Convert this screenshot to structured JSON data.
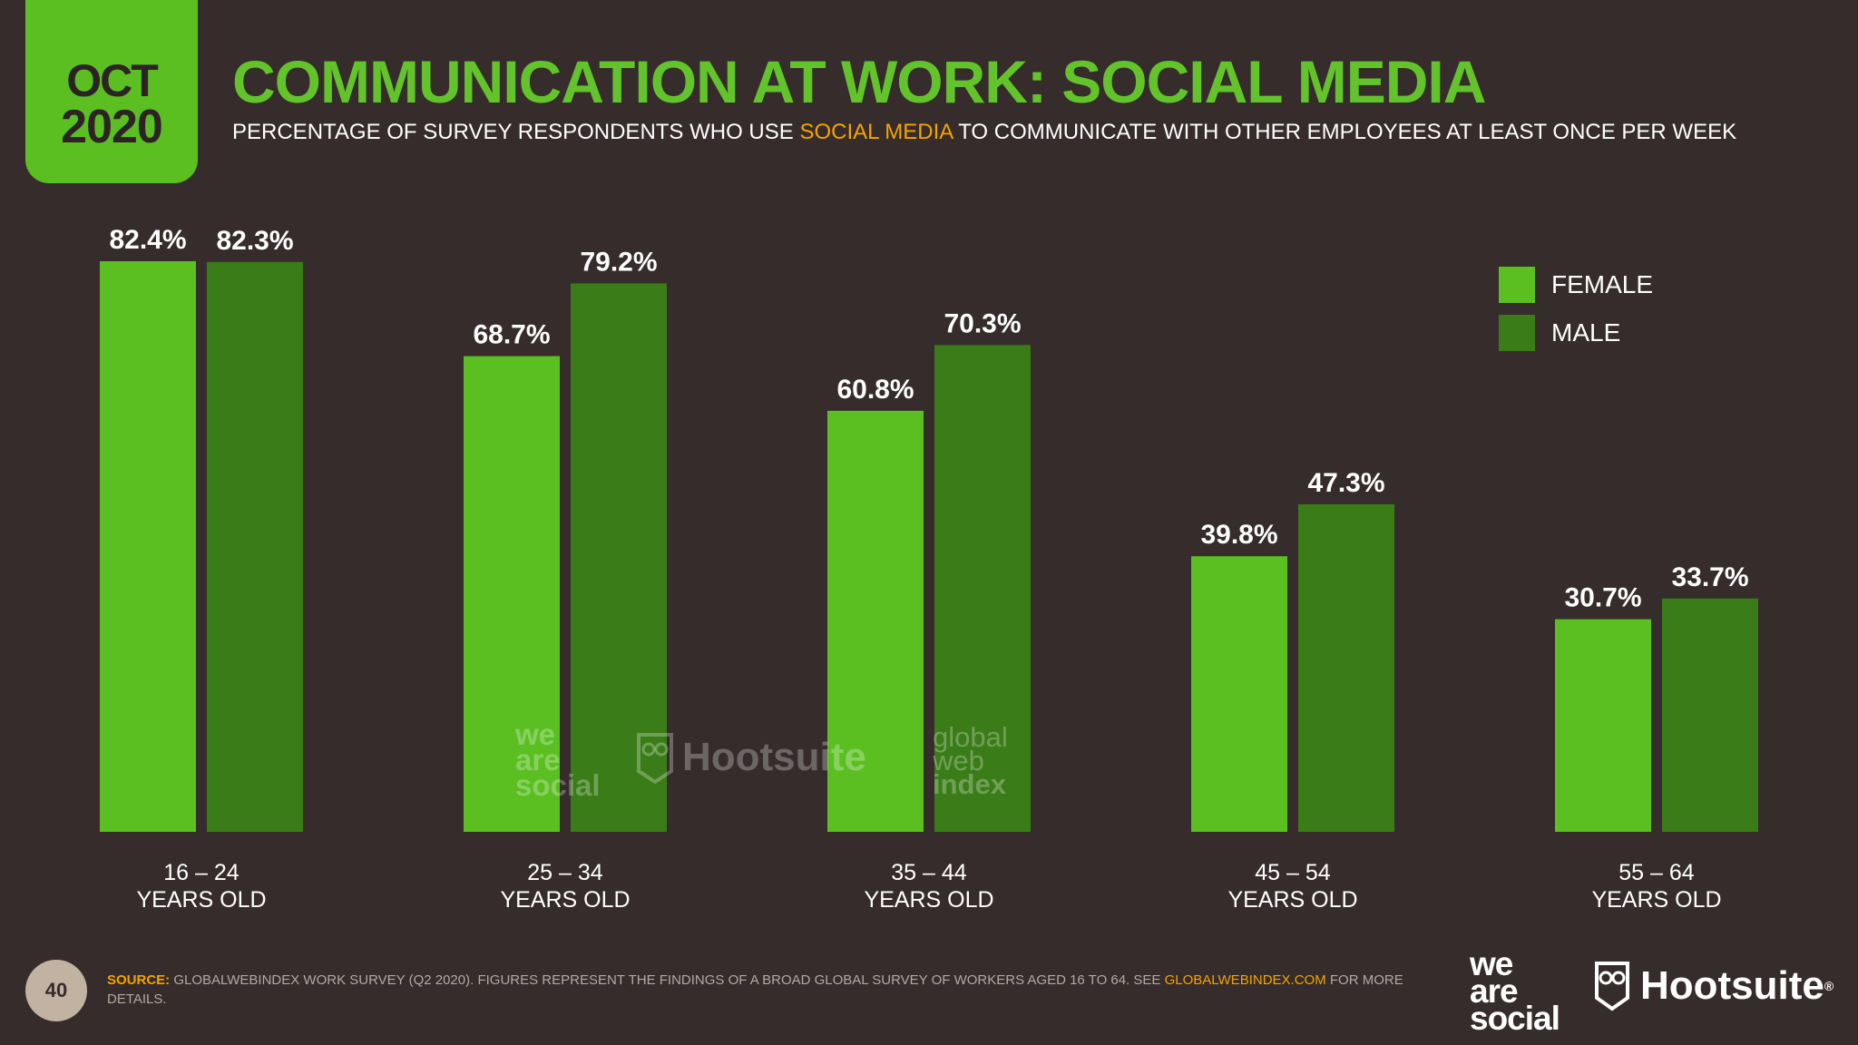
{
  "header": {
    "month": "OCT",
    "year": "2020",
    "title": "COMMUNICATION AT WORK: SOCIAL MEDIA",
    "subtitle_before": "PERCENTAGE OF SURVEY RESPONDENTS WHO USE ",
    "subtitle_highlight": "SOCIAL MEDIA",
    "subtitle_after": " TO COMMUNICATE WITH OTHER EMPLOYEES AT LEAST ONCE PER WEEK"
  },
  "colors": {
    "background": "#352c2b",
    "female": "#5bbf22",
    "male": "#3a7c17",
    "title": "#62c42a",
    "highlight": "#f6a300"
  },
  "chart_data": {
    "type": "bar",
    "categories": [
      [
        "16 – 24",
        "YEARS OLD"
      ],
      [
        "25 – 34",
        "YEARS OLD"
      ],
      [
        "35 – 44",
        "YEARS OLD"
      ],
      [
        "45 – 54",
        "YEARS OLD"
      ],
      [
        "55 – 64",
        "YEARS OLD"
      ]
    ],
    "series": [
      {
        "name": "FEMALE",
        "values": [
          82.4,
          68.7,
          60.8,
          39.8,
          30.7
        ],
        "labels": [
          "82.4%",
          "68.7%",
          "60.8%",
          "39.8%",
          "30.7%"
        ]
      },
      {
        "name": "MALE",
        "values": [
          82.3,
          79.2,
          70.3,
          47.3,
          33.7
        ],
        "labels": [
          "82.3%",
          "79.2%",
          "70.3%",
          "47.3%",
          "33.7%"
        ]
      }
    ],
    "ylim": [
      0,
      100
    ],
    "legend_position": "top-right",
    "grid": false
  },
  "watermarks": {
    "we_are_social": [
      "we",
      "are",
      "social"
    ],
    "hootsuite": "Hootsuite",
    "gwi": [
      "global",
      "web",
      "index"
    ]
  },
  "footer": {
    "page_number": "40",
    "source_label": "SOURCE:",
    "source_text": " GLOBALWEBINDEX WORK SURVEY (Q2 2020). FIGURES REPRESENT THE FINDINGS OF A BROAD GLOBAL SURVEY OF WORKERS AGED 16 TO 64. SEE ",
    "source_link": "GLOBALWEBINDEX.COM",
    "source_end": " FOR MORE DETAILS.",
    "logo_we_are_social": [
      "we",
      "are",
      "social"
    ],
    "logo_hootsuite": "Hootsuite",
    "logo_hootsuite_mark": "®"
  }
}
